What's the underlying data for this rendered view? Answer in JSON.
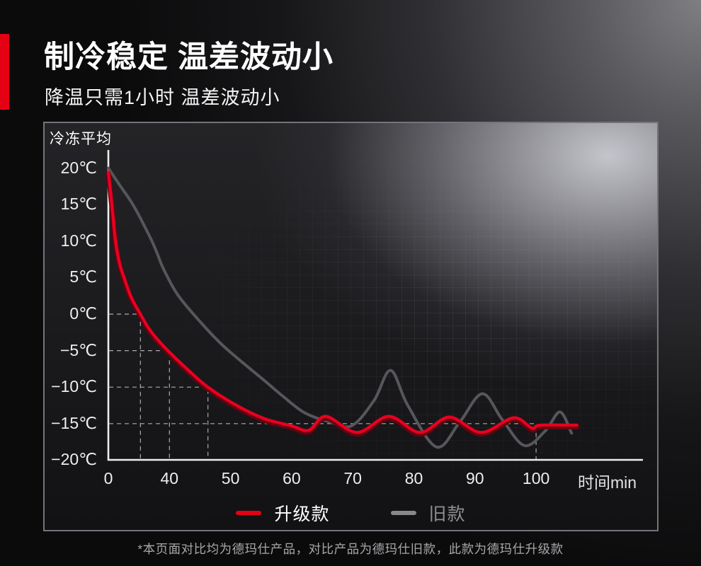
{
  "header": {
    "title": "制冷稳定 温差波动小",
    "subtitle": "降温只需1小时 温差波动小",
    "accent_color": "#e60013"
  },
  "chart_data": {
    "type": "line",
    "title": "冷冻平均",
    "xlabel": "时间min",
    "ylabel": "",
    "grid": "faint square texture, dashed guide lines only",
    "legend_position": "bottom-center",
    "ylim": [
      -20,
      21.5
    ],
    "x_ticks": [
      0,
      40,
      50,
      60,
      70,
      80,
      90,
      100
    ],
    "x_tick_labels": [
      "0",
      "40",
      "50",
      "60",
      "70",
      "80",
      "90",
      "100"
    ],
    "y_tick_values": [
      20,
      15,
      10,
      5,
      0,
      -5,
      -10,
      -15,
      -20
    ],
    "y_tick_labels": [
      "20℃",
      "15℃",
      "10℃",
      "5℃",
      "0℃",
      "−5℃",
      "−10℃",
      "−15℃",
      "−20℃"
    ],
    "axis_note": "x axis is nonlinear: 0→40 min occupies one tick interval, then 10 min per interval",
    "guides": [
      {
        "temp": 0,
        "t": 21
      },
      {
        "temp": -5,
        "t": 40
      },
      {
        "temp": -10,
        "t": 46.3
      },
      {
        "temp": -15,
        "t": 100
      }
    ],
    "series": [
      {
        "name": "升级款",
        "color": "#ea0020",
        "shadow_color": "#6b0110",
        "points": [
          [
            0,
            19.5
          ],
          [
            2.3,
            15
          ],
          [
            4.7,
            10
          ],
          [
            7.3,
            7
          ],
          [
            10.3,
            5
          ],
          [
            15,
            2.3
          ],
          [
            21,
            0
          ],
          [
            26,
            -1.8
          ],
          [
            31.5,
            -3.3
          ],
          [
            40,
            -5.2
          ],
          [
            43,
            -7.6
          ],
          [
            46.3,
            -10
          ],
          [
            51,
            -12.5
          ],
          [
            55.5,
            -14.3
          ],
          [
            60,
            -15.3
          ],
          [
            62.8,
            -15.9
          ],
          [
            65.6,
            -14.0
          ],
          [
            70.7,
            -16.2
          ],
          [
            75.9,
            -14.0
          ],
          [
            81,
            -16.2
          ],
          [
            85.8,
            -14.1
          ],
          [
            91,
            -16.2
          ],
          [
            96.3,
            -14.2
          ],
          [
            99.3,
            -15.6
          ],
          [
            100.7,
            -15.2
          ],
          [
            106.7,
            -15.2
          ]
        ]
      },
      {
        "name": "旧款",
        "color": "#56575c",
        "points": [
          [
            0,
            20
          ],
          [
            8,
            17.5
          ],
          [
            14,
            15.7
          ],
          [
            18.8,
            14
          ],
          [
            25,
            11.5
          ],
          [
            29,
            9.8
          ],
          [
            32.4,
            8.1
          ],
          [
            36.1,
            6.2
          ],
          [
            41.4,
            2.6
          ],
          [
            45.1,
            -1.1
          ],
          [
            49,
            -4.5
          ],
          [
            55.4,
            -9
          ],
          [
            58.5,
            -11.2
          ],
          [
            62.1,
            -13.5
          ],
          [
            66,
            -14.7
          ],
          [
            69.8,
            -15.3
          ],
          [
            73.5,
            -11.8
          ],
          [
            76.2,
            -7.7
          ],
          [
            79,
            -12.5
          ],
          [
            83.7,
            -18.2
          ],
          [
            87.5,
            -14.8
          ],
          [
            91.2,
            -10.9
          ],
          [
            94.5,
            -14.5
          ],
          [
            98.1,
            -18
          ],
          [
            101.5,
            -16
          ],
          [
            103.9,
            -13.4
          ],
          [
            105.8,
            -16.3
          ]
        ]
      }
    ],
    "legend": [
      {
        "label": "升级款",
        "color": "#e60014"
      },
      {
        "label": "旧款",
        "color": "#88888c"
      }
    ]
  },
  "footer": {
    "disclaimer": "*本页面对比均为德玛仕产品，对比产品为德玛仕旧款，此款为德玛仕升级款"
  }
}
